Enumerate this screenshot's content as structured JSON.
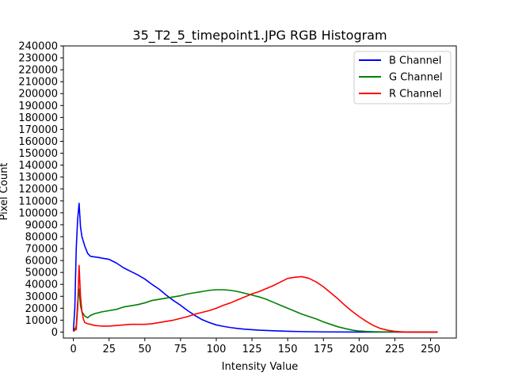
{
  "chart_data": {
    "type": "line",
    "title": "35_T2_5_timepoint1.JPG RGB Histogram",
    "xlabel": "Intensity Value",
    "ylabel": "Pixel Count",
    "xlim": [
      -7,
      268
    ],
    "ylim": [
      -5000,
      240000
    ],
    "x_ticks": [
      "0",
      "25",
      "50",
      "75",
      "100",
      "125",
      "150",
      "175",
      "200",
      "225",
      "250"
    ],
    "y_ticks": [
      "0",
      "10000",
      "20000",
      "30000",
      "40000",
      "50000",
      "60000",
      "70000",
      "80000",
      "90000",
      "100000",
      "110000",
      "120000",
      "130000",
      "140000",
      "150000",
      "160000",
      "170000",
      "180000",
      "190000",
      "200000",
      "210000",
      "220000",
      "230000",
      "240000"
    ],
    "grid": false,
    "legend_position": "top-right",
    "series": [
      {
        "name": "B Channel",
        "color": "#0000ff",
        "points": [
          [
            0,
            1000
          ],
          [
            1,
            20000
          ],
          [
            2,
            70000
          ],
          [
            3,
            95000
          ],
          [
            4,
            108000
          ],
          [
            5,
            88000
          ],
          [
            6,
            80000
          ],
          [
            8,
            72000
          ],
          [
            10,
            66000
          ],
          [
            12,
            63500
          ],
          [
            15,
            63000
          ],
          [
            18,
            62500
          ],
          [
            20,
            62000
          ],
          [
            25,
            61000
          ],
          [
            30,
            58000
          ],
          [
            35,
            54000
          ],
          [
            40,
            51000
          ],
          [
            45,
            48000
          ],
          [
            50,
            44500
          ],
          [
            55,
            40000
          ],
          [
            60,
            36000
          ],
          [
            65,
            31000
          ],
          [
            70,
            26500
          ],
          [
            75,
            22500
          ],
          [
            80,
            18000
          ],
          [
            85,
            14000
          ],
          [
            90,
            10500
          ],
          [
            95,
            8000
          ],
          [
            100,
            6000
          ],
          [
            105,
            4800
          ],
          [
            110,
            3800
          ],
          [
            115,
            3000
          ],
          [
            120,
            2400
          ],
          [
            125,
            2000
          ],
          [
            130,
            1600
          ],
          [
            140,
            1100
          ],
          [
            150,
            700
          ],
          [
            160,
            400
          ],
          [
            175,
            150
          ],
          [
            200,
            50
          ],
          [
            225,
            20
          ],
          [
            255,
            0
          ]
        ]
      },
      {
        "name": "G Channel",
        "color": "#008000",
        "points": [
          [
            0,
            500
          ],
          [
            1,
            1500
          ],
          [
            2,
            5000
          ],
          [
            3,
            25000
          ],
          [
            4,
            36000
          ],
          [
            5,
            22000
          ],
          [
            6,
            17000
          ],
          [
            8,
            13500
          ],
          [
            10,
            12000
          ],
          [
            12,
            14000
          ],
          [
            15,
            15500
          ],
          [
            20,
            17000
          ],
          [
            25,
            18000
          ],
          [
            30,
            19000
          ],
          [
            35,
            21000
          ],
          [
            40,
            22000
          ],
          [
            45,
            23000
          ],
          [
            50,
            24500
          ],
          [
            55,
            26500
          ],
          [
            60,
            27500
          ],
          [
            65,
            28500
          ],
          [
            70,
            29500
          ],
          [
            75,
            30500
          ],
          [
            80,
            32000
          ],
          [
            85,
            33000
          ],
          [
            90,
            34000
          ],
          [
            95,
            35000
          ],
          [
            100,
            35500
          ],
          [
            105,
            35500
          ],
          [
            110,
            35000
          ],
          [
            115,
            34000
          ],
          [
            120,
            32500
          ],
          [
            125,
            31000
          ],
          [
            130,
            29500
          ],
          [
            135,
            27500
          ],
          [
            140,
            25000
          ],
          [
            145,
            22500
          ],
          [
            150,
            20000
          ],
          [
            155,
            17500
          ],
          [
            160,
            15000
          ],
          [
            165,
            13000
          ],
          [
            170,
            11000
          ],
          [
            175,
            8500
          ],
          [
            180,
            6500
          ],
          [
            185,
            4500
          ],
          [
            190,
            3000
          ],
          [
            195,
            1700
          ],
          [
            200,
            900
          ],
          [
            205,
            500
          ],
          [
            210,
            300
          ],
          [
            220,
            150
          ],
          [
            230,
            80
          ],
          [
            240,
            40
          ],
          [
            255,
            0
          ]
        ]
      },
      {
        "name": "R Channel",
        "color": "#ff0000",
        "points": [
          [
            0,
            500
          ],
          [
            1,
            3000
          ],
          [
            2,
            2000
          ],
          [
            3,
            20000
          ],
          [
            4,
            56000
          ],
          [
            5,
            30000
          ],
          [
            6,
            17000
          ],
          [
            7,
            11000
          ],
          [
            8,
            8000
          ],
          [
            10,
            7000
          ],
          [
            12,
            6500
          ],
          [
            15,
            5500
          ],
          [
            20,
            5000
          ],
          [
            25,
            5000
          ],
          [
            30,
            5500
          ],
          [
            35,
            6000
          ],
          [
            40,
            6500
          ],
          [
            45,
            6500
          ],
          [
            50,
            6500
          ],
          [
            55,
            7000
          ],
          [
            60,
            8000
          ],
          [
            65,
            9000
          ],
          [
            70,
            10000
          ],
          [
            75,
            11500
          ],
          [
            80,
            13000
          ],
          [
            85,
            15000
          ],
          [
            90,
            16500
          ],
          [
            95,
            18000
          ],
          [
            100,
            20000
          ],
          [
            105,
            22500
          ],
          [
            110,
            24500
          ],
          [
            115,
            27000
          ],
          [
            120,
            29500
          ],
          [
            125,
            32000
          ],
          [
            130,
            34000
          ],
          [
            135,
            36500
          ],
          [
            140,
            39000
          ],
          [
            145,
            42000
          ],
          [
            150,
            45000
          ],
          [
            155,
            46000
          ],
          [
            160,
            46500
          ],
          [
            165,
            45000
          ],
          [
            170,
            42000
          ],
          [
            175,
            38000
          ],
          [
            180,
            33000
          ],
          [
            185,
            28000
          ],
          [
            190,
            22500
          ],
          [
            195,
            17500
          ],
          [
            200,
            13000
          ],
          [
            205,
            9000
          ],
          [
            210,
            5500
          ],
          [
            215,
            3000
          ],
          [
            220,
            1500
          ],
          [
            225,
            600
          ],
          [
            230,
            200
          ],
          [
            235,
            50
          ],
          [
            255,
            0
          ]
        ]
      }
    ]
  }
}
